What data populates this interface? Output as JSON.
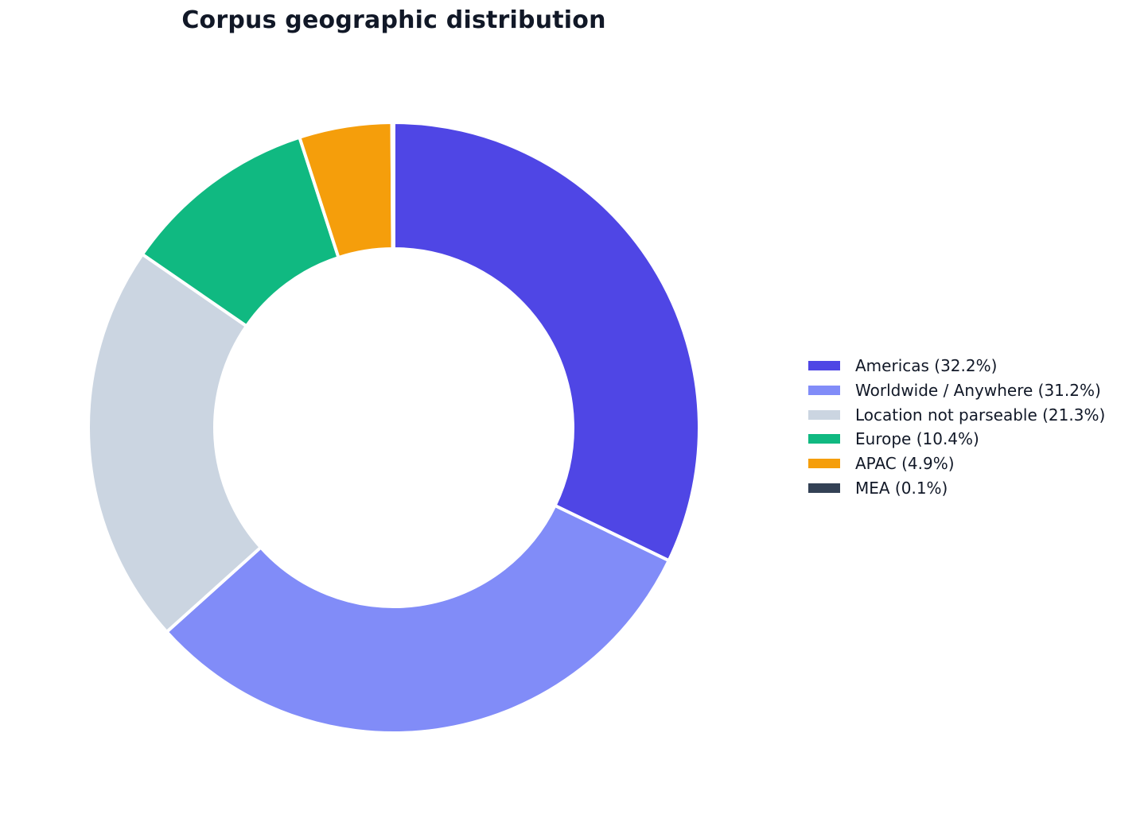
{
  "chart_data": {
    "type": "pie",
    "variant": "donut",
    "title": "Corpus geographic distribution",
    "start": "top",
    "direction": "clockwise",
    "slices": [
      {
        "label": "Americas (32.2%)",
        "value": 32.2,
        "color": "#4f46e5"
      },
      {
        "label": "Worldwide / Anywhere (31.2%)",
        "value": 31.2,
        "color": "#818cf8"
      },
      {
        "label": "Location not parseable (21.3%)",
        "value": 21.3,
        "color": "#cbd5e1"
      },
      {
        "label": "Europe (10.4%)",
        "value": 10.4,
        "color": "#10b981"
      },
      {
        "label": "APAC (4.9%)",
        "value": 4.9,
        "color": "#f59e0b"
      },
      {
        "label": "MEA (0.1%)",
        "value": 0.1,
        "color": "#334155"
      }
    ],
    "legend_position": "right"
  }
}
